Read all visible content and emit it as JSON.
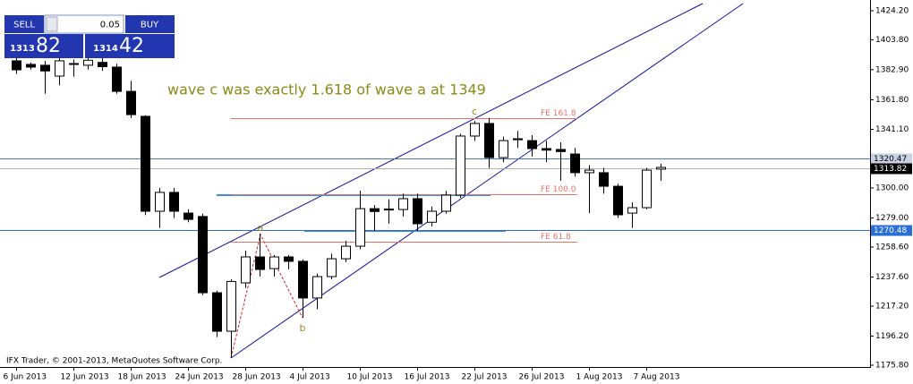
{
  "chart_data": {
    "type": "candlestick",
    "annotation": "wave c was exactly 1.618 of wave a at 1349",
    "footer": "IFX Trader, © 2001-2013, MetaQuotes Software Corp.",
    "categories": [
      "6 Jun 2013",
      null,
      null,
      null,
      "12 Jun 2013",
      null,
      null,
      null,
      "18 Jun 2013",
      null,
      null,
      null,
      "24 Jun 2013",
      null,
      null,
      null,
      "28 Jun 2013",
      null,
      null,
      null,
      "4 Jul 2013",
      null,
      null,
      null,
      "10 Jul 2013",
      null,
      null,
      null,
      "16 Jul 2013",
      null,
      null,
      null,
      "22 Jul 2013",
      null,
      null,
      null,
      "26 Jul 2013",
      null,
      null,
      null,
      "1 Aug 2013",
      null,
      null,
      null,
      "7 Aug 2013",
      null
    ],
    "open": [
      1389.1,
      1386.6,
      1386.0,
      1378.4,
      1386.6,
      1386.0,
      1388.0,
      1384.7,
      1367.7,
      1350.2,
      1283.7,
      1296.9,
      1282.4,
      1280.0,
      1226.6,
      1199.6,
      1233.5,
      1251.7,
      1243.5,
      1251.7,
      1248.6,
      1222.9,
      1237.9,
      1250.4,
      1259.2,
      1285.5,
      1284.9,
      1284.9,
      1292.5,
      1276.0,
      1283.7,
      1295.0,
      1336.4,
      1345.2,
      1321.3,
      1334.5,
      1333.2,
      1327.6,
      1327.0,
      1323.8,
      1310.7,
      1310.7,
      1301.2,
      1282.4,
      1286.2,
      1313.2
    ],
    "high": [
      1391.0,
      1388.0,
      1389.0,
      1391.0,
      1390.0,
      1393.0,
      1392.0,
      1387.0,
      1375.0,
      1351.0,
      1300.0,
      1300.0,
      1285.0,
      1282.0,
      1228.0,
      1236.0,
      1256.0,
      1268.0,
      1253.0,
      1253.0,
      1250.0,
      1240.0,
      1254.0,
      1263.0,
      1298.1,
      1288.0,
      1292.0,
      1296.0,
      1296.0,
      1287.0,
      1298.0,
      1338.0,
      1347.0,
      1349.0,
      1336.0,
      1340.0,
      1337.0,
      1333.0,
      1332.0,
      1328.0,
      1316.0,
      1314.0,
      1303.0,
      1290.0,
      1314.0,
      1317.0
    ],
    "low": [
      1380.0,
      1383.0,
      1366.0,
      1372.0,
      1378.0,
      1383.0,
      1382.0,
      1366.0,
      1349.0,
      1281.0,
      1272.0,
      1279.0,
      1276.0,
      1225.0,
      1195.5,
      1180.8,
      1230.0,
      1238.0,
      1238.0,
      1243.0,
      1209.0,
      1215.0,
      1236.0,
      1248.0,
      1257.0,
      1270.0,
      1275.0,
      1280.0,
      1270.0,
      1273.0,
      1282.0,
      1293.0,
      1333.0,
      1314.0,
      1318.0,
      1328.0,
      1322.0,
      1318.0,
      1305.0,
      1308.0,
      1282.4,
      1296.0,
      1279.0,
      1272.0,
      1285.0,
      1305.0
    ],
    "close": [
      1382.8,
      1384.7,
      1382.0,
      1389.1,
      1387.2,
      1389.5,
      1385.0,
      1367.7,
      1351.4,
      1283.7,
      1296.9,
      1283.7,
      1278.0,
      1226.6,
      1199.6,
      1234.5,
      1251.7,
      1242.9,
      1251.7,
      1248.6,
      1222.9,
      1237.9,
      1250.4,
      1259.2,
      1285.5,
      1283.5,
      1285.2,
      1292.5,
      1274.9,
      1283.7,
      1295.0,
      1336.4,
      1345.2,
      1321.3,
      1333.2,
      1333.8,
      1327.6,
      1326.5,
      1325.5,
      1310.7,
      1312.5,
      1301.2,
      1281.2,
      1286.2,
      1312.5,
      1314.4
    ],
    "up_color": "#ffffff",
    "down_color": "#000000",
    "ylim": [
      1175.8,
      1424.2
    ],
    "yticks": [
      {
        "value": 1424.2,
        "label": "1424.20"
      },
      {
        "value": 1403.8,
        "label": "1403.80"
      },
      {
        "value": 1382.9,
        "label": "1382.90"
      },
      {
        "value": 1361.8,
        "label": "1361.80"
      },
      {
        "value": 1341.1,
        "label": "1341.10"
      },
      {
        "value": 1300,
        "label": "1300.00"
      },
      {
        "value": 1279,
        "label": "1279.00"
      },
      {
        "value": 1258.6,
        "label": "1258.60"
      },
      {
        "value": 1237.6,
        "label": "1237.60"
      },
      {
        "value": 1217.2,
        "label": "1217.20"
      },
      {
        "value": 1196.2,
        "label": "1196.20"
      },
      {
        "value": 1175.8,
        "label": "1175.80"
      }
    ],
    "levels": [
      {
        "value": 1320.47,
        "color": "#4d76b3",
        "label_bg": "#c8d2e4",
        "label_color": "#000000"
      },
      {
        "value": 1313.82,
        "color": "#b0b0b0",
        "label_bg": "#000000",
        "label_color": "#ffffff"
      },
      {
        "value": 1270.48,
        "color": "#2a6fd6",
        "label_bg": "#2a6fd6",
        "label_color": "#ffffff"
      }
    ],
    "fib_levels": [
      {
        "label": "FE 161.8",
        "price": 1349
      },
      {
        "label": "FE 100.0",
        "price": 1295.6
      },
      {
        "label": "FE 61.8",
        "price": 1262.4
      }
    ],
    "fib_color": "#e8736b",
    "waves": [
      "a",
      "b",
      "c"
    ]
  },
  "trade_panel": {
    "sell": "SELL",
    "lot": "0.05",
    "buy": "BUY",
    "bid_big": "1313",
    "bid_small": "82",
    "ask_big": "1314",
    "ask_small": "42"
  }
}
